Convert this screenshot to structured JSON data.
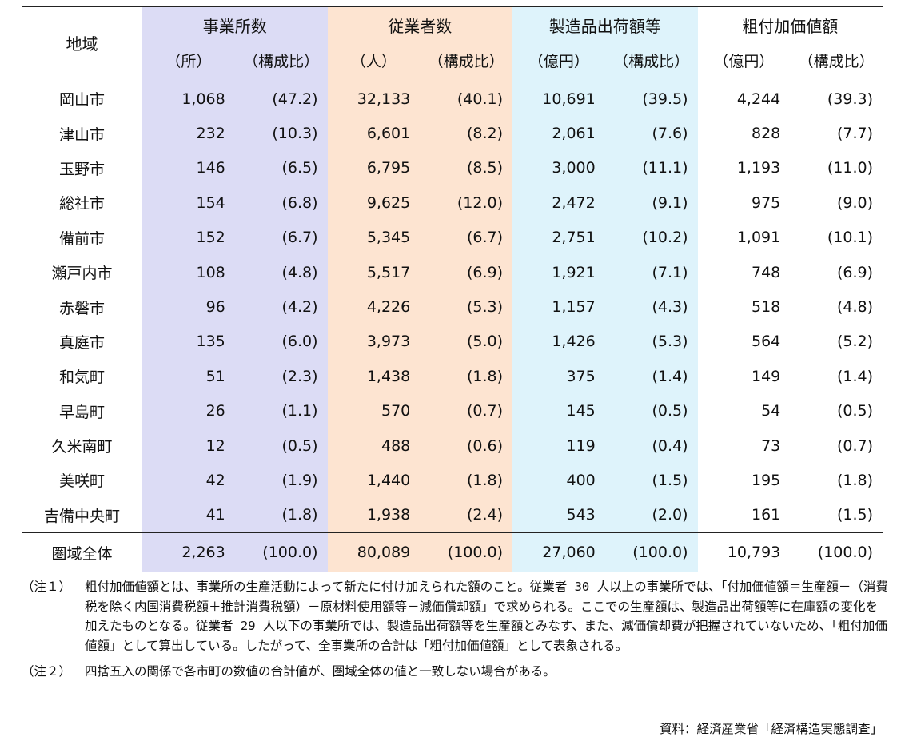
{
  "headers": {
    "region": "地域",
    "groups": [
      "事業所数",
      "従業者数",
      "製造品出荷額等",
      "粗付加価値額"
    ],
    "units": [
      "（所）",
      "（構成比）",
      "（人）",
      "（構成比）",
      "（億円）",
      "（構成比）",
      "（億円）",
      "（構成比）"
    ]
  },
  "rows": [
    [
      "岡山市",
      "1,068",
      "(47.2)",
      "32,133",
      "(40.1)",
      "10,691",
      "(39.5)",
      "4,244",
      "(39.3)"
    ],
    [
      "津山市",
      "232",
      "(10.3)",
      "6,601",
      "(8.2)",
      "2,061",
      "(7.6)",
      "828",
      "(7.7)"
    ],
    [
      "玉野市",
      "146",
      "(6.5)",
      "6,795",
      "(8.5)",
      "3,000",
      "(11.1)",
      "1,193",
      "(11.0)"
    ],
    [
      "総社市",
      "154",
      "(6.8)",
      "9,625",
      "(12.0)",
      "2,472",
      "(9.1)",
      "975",
      "(9.0)"
    ],
    [
      "備前市",
      "152",
      "(6.7)",
      "5,345",
      "(6.7)",
      "2,751",
      "(10.2)",
      "1,091",
      "(10.1)"
    ],
    [
      "瀬戸内市",
      "108",
      "(4.8)",
      "5,517",
      "(6.9)",
      "1,921",
      "(7.1)",
      "748",
      "(6.9)"
    ],
    [
      "赤磐市",
      "96",
      "(4.2)",
      "4,226",
      "(5.3)",
      "1,157",
      "(4.3)",
      "518",
      "(4.8)"
    ],
    [
      "真庭市",
      "135",
      "(6.0)",
      "3,973",
      "(5.0)",
      "1,426",
      "(5.3)",
      "564",
      "(5.2)"
    ],
    [
      "和気町",
      "51",
      "(2.3)",
      "1,438",
      "(1.8)",
      "375",
      "(1.4)",
      "149",
      "(1.4)"
    ],
    [
      "早島町",
      "26",
      "(1.1)",
      "570",
      "(0.7)",
      "145",
      "(0.5)",
      "54",
      "(0.5)"
    ],
    [
      "久米南町",
      "12",
      "(0.5)",
      "488",
      "(0.6)",
      "119",
      "(0.4)",
      "73",
      "(0.7)"
    ],
    [
      "美咲町",
      "42",
      "(1.9)",
      "1,440",
      "(1.8)",
      "400",
      "(1.5)",
      "195",
      "(1.8)"
    ],
    [
      "吉備中央町",
      "41",
      "(1.8)",
      "1,938",
      "(2.4)",
      "543",
      "(2.0)",
      "161",
      "(1.5)"
    ]
  ],
  "total": [
    "圏域全体",
    "2,263",
    "(100.0)",
    "80,089",
    "(100.0)",
    "27,060",
    "(100.0)",
    "10,793",
    "(100.0)"
  ],
  "notes": [
    {
      "label": "（注１）",
      "text": "粗付加価値額とは、事業所の生産活動によって新たに付け加えられた額のこと。従業者 30 人以上の事業所では、「付加価値額＝生産額－（消費税を除く内国消費税額＋推計消費税額）－原材料使用額等－減価償却額」で求められる。ここでの生産額は、製造品出荷額等に在庫額の変化を加えたものとなる。従業者 29 人以下の事業所では、製造品出荷額等を生産額とみなす、また、減価償却費が把握されていないため、「粗付加価値額」として算出している。したがって、全事業所の合計は「粗付加価値額」として表象される。"
    },
    {
      "label": "（注２）",
      "text": "四捨五入の関係で各市町の数値の合計値が、圏域全体の値と一致しない場合がある。"
    }
  ],
  "source": "資料：経済産業省「経済構造実態調査」"
}
